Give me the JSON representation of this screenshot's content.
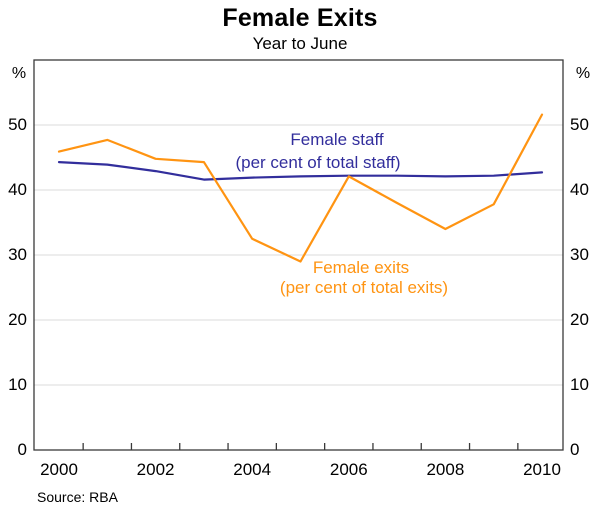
{
  "header": {
    "title": "Female Exits",
    "subtitle": "Year to June"
  },
  "footer": {
    "source": "Source: RBA"
  },
  "annotations": {
    "staff": {
      "line1": "Female staff",
      "line2": "(per cent of total staff)",
      "color": "#322E9C"
    },
    "exits": {
      "line1": "Female exits",
      "line2": "(per cent of total exits)",
      "color": "#FF9412"
    }
  },
  "chart_data": {
    "type": "line",
    "title": "Female Exits",
    "subtitle": "Year to June",
    "x": [
      2000,
      2001,
      2002,
      2003,
      2004,
      2005,
      2006,
      2007,
      2008,
      2009,
      2010
    ],
    "series": [
      {
        "name": "Female staff (per cent of total staff)",
        "color": "#322E9C",
        "values": [
          44.3,
          43.9,
          42.9,
          41.6,
          41.9,
          42.1,
          42.2,
          42.2,
          42.1,
          42.2,
          42.7
        ]
      },
      {
        "name": "Female exits (per cent of total exits)",
        "color": "#FF9412",
        "values": [
          45.9,
          47.7,
          44.8,
          44.3,
          32.5,
          29.0,
          42.1,
          38.0,
          34.0,
          37.8,
          51.6
        ]
      }
    ],
    "ylim": [
      0,
      60
    ],
    "yticks": [
      0,
      10,
      20,
      30,
      40,
      50
    ],
    "y_unit": "%",
    "y_axis_sides": [
      "left",
      "right"
    ],
    "x_tick_years": [
      2000,
      2002,
      2004,
      2006,
      2008,
      2010
    ],
    "x_minor_ticks": [
      2000.5,
      2001.5,
      2002.5,
      2003.5,
      2004.5,
      2005.5,
      2006.5,
      2007.5,
      2008.5,
      2009.5
    ],
    "grid": "horizontal",
    "legend_position": "inline-annotations",
    "grid_color": "#DBDBDB",
    "axis_color": "#3A3A3A"
  }
}
